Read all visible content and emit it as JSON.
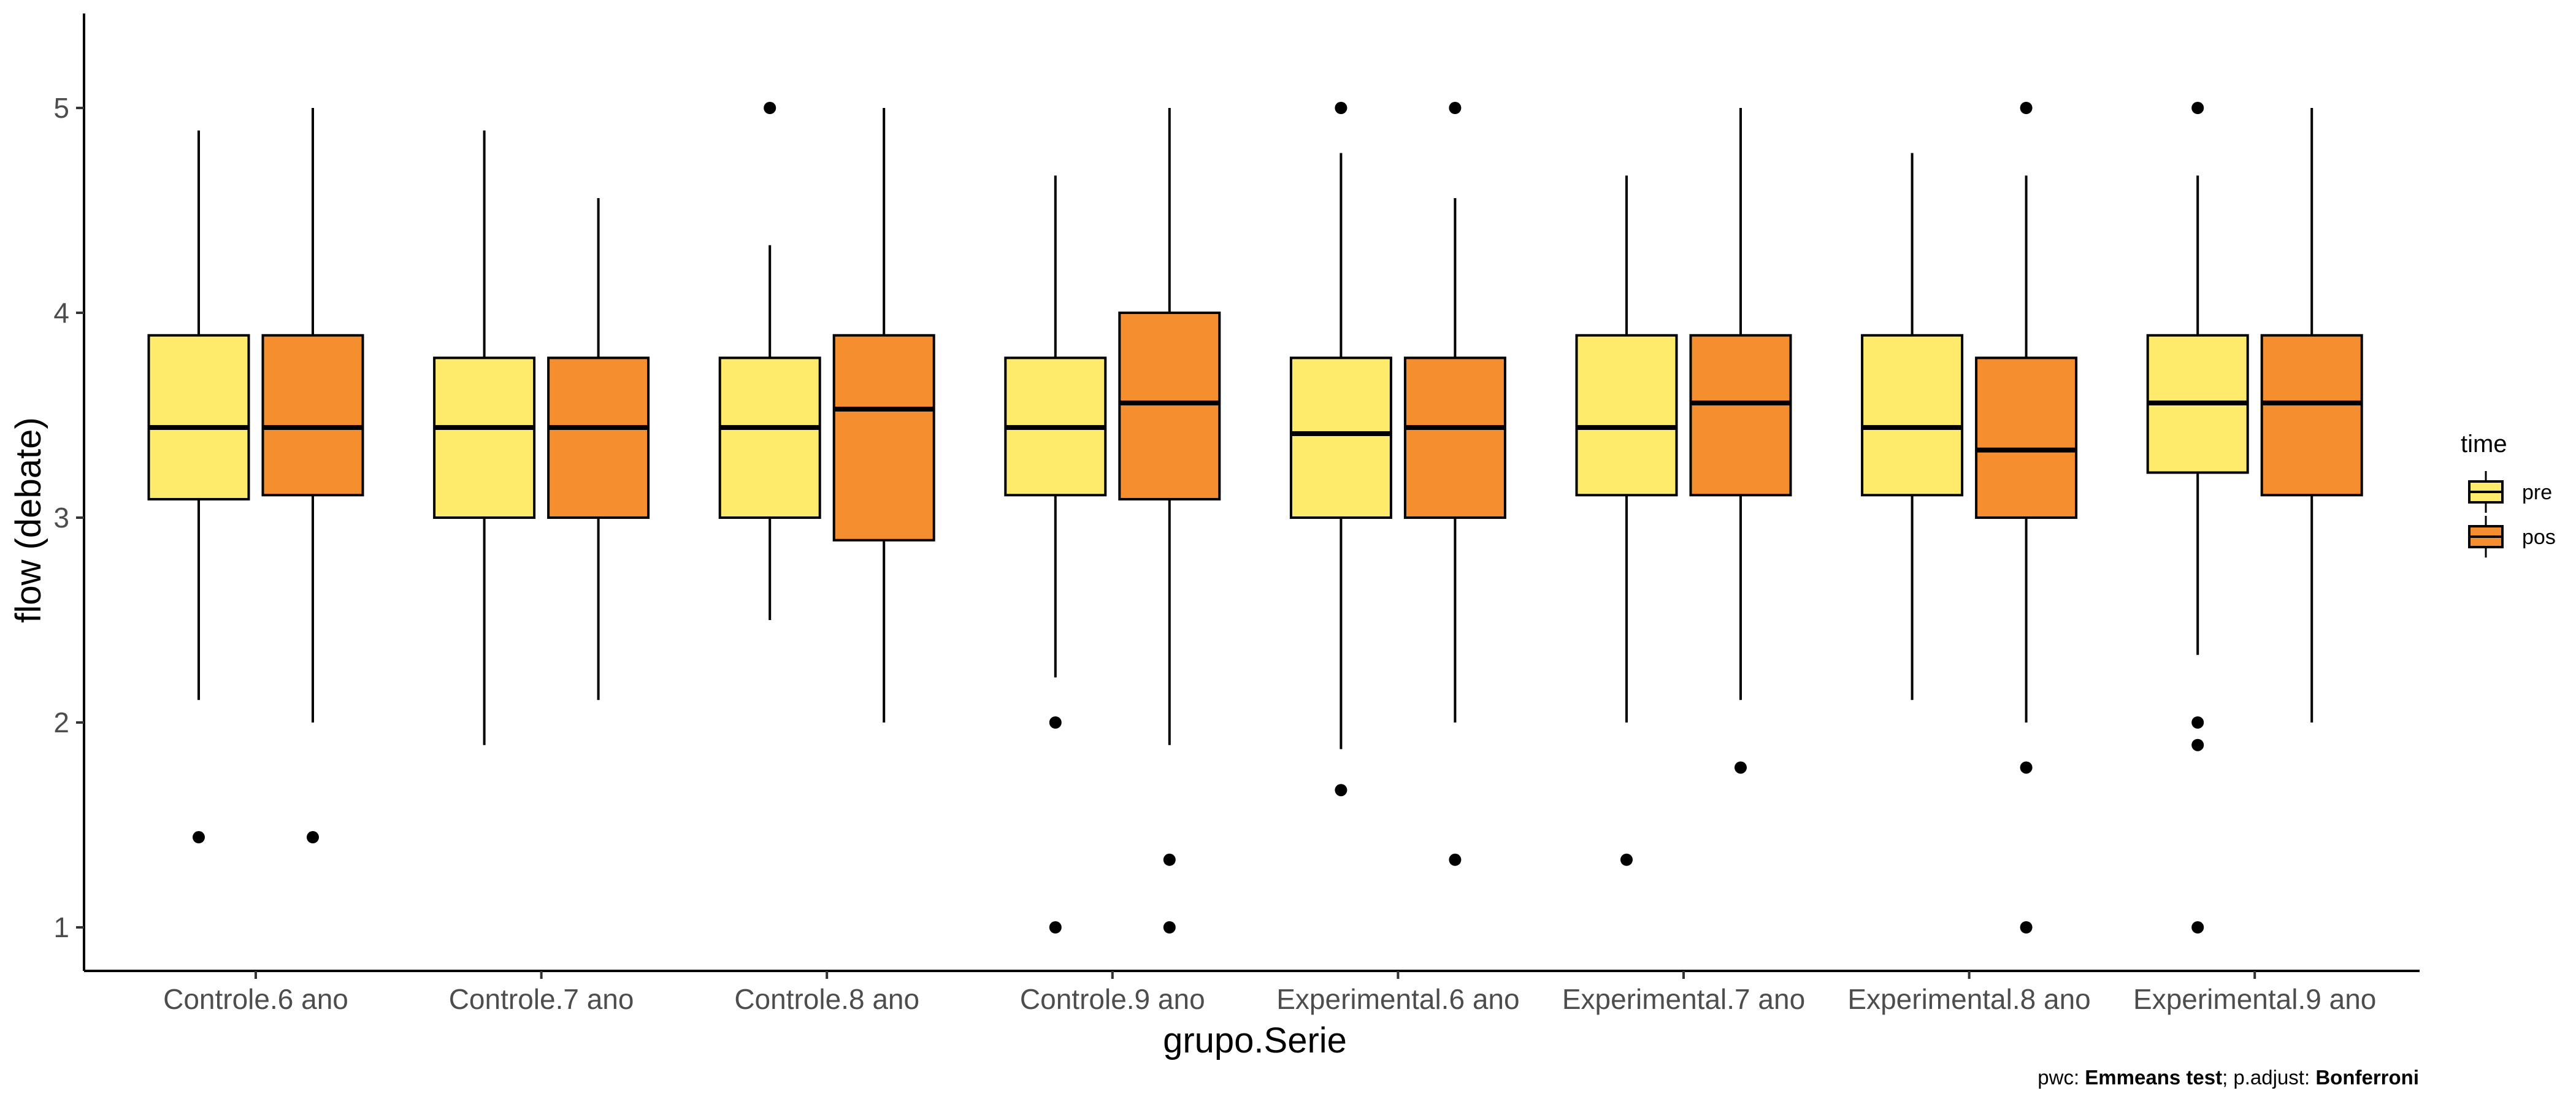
{
  "chart_data": {
    "type": "boxplot",
    "xlabel": "grupo.Serie",
    "ylabel": "flow (debate)",
    "ylim": [
      0.8,
      5.45
    ],
    "yticks": [
      1,
      2,
      3,
      4,
      5
    ],
    "grid": false,
    "legend": {
      "title": "time",
      "placement": "right",
      "entries": [
        {
          "label": "pre",
          "color": "#FFEB6B"
        },
        {
          "label": "pos",
          "color": "#F48E2E"
        }
      ]
    },
    "caption": {
      "prefix": "pwc: ",
      "test": "Emmeans test",
      "middle": "; p.adjust: ",
      "adjust": "Bonferroni"
    },
    "categories": [
      "Controle.6 ano",
      "Controle.7 ano",
      "Controle.8 ano",
      "Controle.9 ano",
      "Experimental.6 ano",
      "Experimental.7 ano",
      "Experimental.8 ano",
      "Experimental.9 ano"
    ],
    "series": [
      {
        "name": "pre",
        "color": "#FFEB6B",
        "boxes": [
          {
            "whisker_low": 2.11,
            "q1": 3.09,
            "median": 3.44,
            "q3": 3.89,
            "whisker_high": 4.89,
            "outliers": [
              1.44
            ]
          },
          {
            "whisker_low": 1.89,
            "q1": 3.0,
            "median": 3.44,
            "q3": 3.78,
            "whisker_high": 4.89,
            "outliers": []
          },
          {
            "whisker_low": 2.5,
            "q1": 3.0,
            "median": 3.44,
            "q3": 3.78,
            "whisker_high": 4.33,
            "outliers": [
              5.0
            ]
          },
          {
            "whisker_low": 2.22,
            "q1": 3.11,
            "median": 3.44,
            "q3": 3.78,
            "whisker_high": 4.67,
            "outliers": [
              2.0,
              1.0
            ]
          },
          {
            "whisker_low": 1.87,
            "q1": 3.0,
            "median": 3.41,
            "q3": 3.78,
            "whisker_high": 4.78,
            "outliers": [
              5.0,
              1.67
            ]
          },
          {
            "whisker_low": 2.0,
            "q1": 3.11,
            "median": 3.44,
            "q3": 3.89,
            "whisker_high": 4.67,
            "outliers": [
              1.33
            ]
          },
          {
            "whisker_low": 2.11,
            "q1": 3.11,
            "median": 3.44,
            "q3": 3.89,
            "whisker_high": 4.78,
            "outliers": []
          },
          {
            "whisker_low": 2.33,
            "q1": 3.22,
            "median": 3.56,
            "q3": 3.89,
            "whisker_high": 4.67,
            "outliers": [
              5.0,
              2.0,
              1.89,
              1.0
            ]
          }
        ]
      },
      {
        "name": "pos",
        "color": "#F48E2E",
        "boxes": [
          {
            "whisker_low": 2.0,
            "q1": 3.11,
            "median": 3.44,
            "q3": 3.89,
            "whisker_high": 5.0,
            "outliers": [
              1.44
            ]
          },
          {
            "whisker_low": 2.11,
            "q1": 3.0,
            "median": 3.44,
            "q3": 3.78,
            "whisker_high": 4.56,
            "outliers": []
          },
          {
            "whisker_low": 2.0,
            "q1": 2.89,
            "median": 3.53,
            "q3": 3.89,
            "whisker_high": 5.0,
            "outliers": []
          },
          {
            "whisker_low": 1.89,
            "q1": 3.09,
            "median": 3.56,
            "q3": 4.0,
            "whisker_high": 5.0,
            "outliers": [
              1.33,
              1.0
            ]
          },
          {
            "whisker_low": 2.0,
            "q1": 3.0,
            "median": 3.44,
            "q3": 3.78,
            "whisker_high": 4.56,
            "outliers": [
              5.0,
              1.33
            ]
          },
          {
            "whisker_low": 2.11,
            "q1": 3.11,
            "median": 3.56,
            "q3": 3.89,
            "whisker_high": 5.0,
            "outliers": [
              1.78
            ]
          },
          {
            "whisker_low": 2.0,
            "q1": 3.0,
            "median": 3.33,
            "q3": 3.78,
            "whisker_high": 4.67,
            "outliers": [
              5.0,
              1.78,
              1.0
            ]
          },
          {
            "whisker_low": 2.0,
            "q1": 3.11,
            "median": 3.56,
            "q3": 3.89,
            "whisker_high": 5.0,
            "outliers": []
          }
        ]
      }
    ]
  }
}
